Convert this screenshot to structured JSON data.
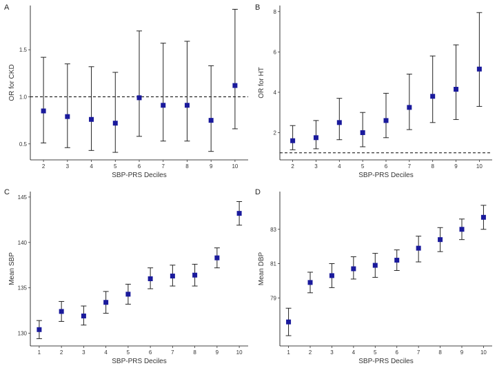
{
  "chart_data": [
    {
      "panel": "A",
      "type": "scatter",
      "xlabel": "SBP-PRS Deciles",
      "ylabel": "OR for CKD",
      "x": [
        2,
        3,
        4,
        5,
        6,
        7,
        8,
        9,
        10
      ],
      "y": [
        0.85,
        0.79,
        0.76,
        0.72,
        0.99,
        0.91,
        0.91,
        0.75,
        1.12
      ],
      "lower": [
        0.51,
        0.46,
        0.43,
        0.41,
        0.58,
        0.53,
        0.53,
        0.42,
        0.66
      ],
      "upper": [
        1.42,
        1.35,
        1.32,
        1.26,
        1.7,
        1.57,
        1.59,
        1.33,
        1.93
      ],
      "xlim": [
        1.45,
        10.55
      ],
      "ylim": [
        0.33,
        1.97
      ],
      "yticks": [
        "0.5",
        "1.0",
        "1.5"
      ],
      "reference_line": 1.0,
      "marker_color": "#1a1a9c"
    },
    {
      "panel": "B",
      "type": "scatter",
      "xlabel": "SBP-PRS Deciles",
      "ylabel": "OR for HT",
      "x": [
        2,
        3,
        4,
        5,
        6,
        7,
        8,
        9,
        10
      ],
      "y": [
        1.6,
        1.75,
        2.5,
        2.0,
        2.6,
        3.25,
        3.8,
        4.15,
        5.15
      ],
      "lower": [
        1.15,
        1.2,
        1.65,
        1.3,
        1.75,
        2.15,
        2.5,
        2.65,
        3.3
      ],
      "upper": [
        2.35,
        2.6,
        3.7,
        3.0,
        3.95,
        4.9,
        5.8,
        6.35,
        7.95
      ],
      "xlim": [
        1.45,
        10.55
      ],
      "ylim": [
        0.65,
        8.3
      ],
      "yticks": [
        "2",
        "4",
        "6",
        "8"
      ],
      "reference_line": 1.0,
      "marker_color": "#1a1a9c"
    },
    {
      "panel": "C",
      "type": "scatter",
      "xlabel": "SBP-PRS Deciles",
      "ylabel": "Mean SBP",
      "x": [
        1,
        2,
        3,
        4,
        5,
        6,
        7,
        8,
        9,
        10
      ],
      "y": [
        130.4,
        132.4,
        131.9,
        133.4,
        134.3,
        136.0,
        136.3,
        136.4,
        138.3,
        143.2
      ],
      "lower": [
        129.4,
        131.3,
        130.9,
        132.2,
        133.2,
        134.9,
        135.2,
        135.2,
        137.2,
        141.9
      ],
      "upper": [
        131.4,
        133.5,
        133.0,
        134.6,
        135.4,
        137.2,
        137.5,
        137.6,
        139.4,
        144.5
      ],
      "xlim": [
        0.6,
        10.4
      ],
      "ylim": [
        128.6,
        145.6
      ],
      "yticks": [
        "130",
        "135",
        "140",
        "145"
      ],
      "marker_color": "#1a1a9c"
    },
    {
      "panel": "D",
      "type": "scatter",
      "xlabel": "SBP-PRS Deciles",
      "ylabel": "Mean DBP",
      "x": [
        1,
        2,
        3,
        4,
        5,
        6,
        7,
        8,
        9,
        10
      ],
      "y": [
        77.6,
        79.9,
        80.3,
        80.7,
        80.9,
        81.2,
        81.9,
        82.4,
        83.0,
        83.7
      ],
      "lower": [
        76.8,
        79.3,
        79.6,
        80.1,
        80.2,
        80.6,
        81.1,
        81.7,
        82.4,
        83.0
      ],
      "upper": [
        78.4,
        80.5,
        81.0,
        81.4,
        81.6,
        81.8,
        82.6,
        83.1,
        83.6,
        84.4
      ],
      "xlim": [
        0.6,
        10.4
      ],
      "ylim": [
        76.2,
        85.2
      ],
      "yticks": [
        "79",
        "81",
        "83"
      ],
      "marker_color": "#1a1a9c"
    }
  ]
}
